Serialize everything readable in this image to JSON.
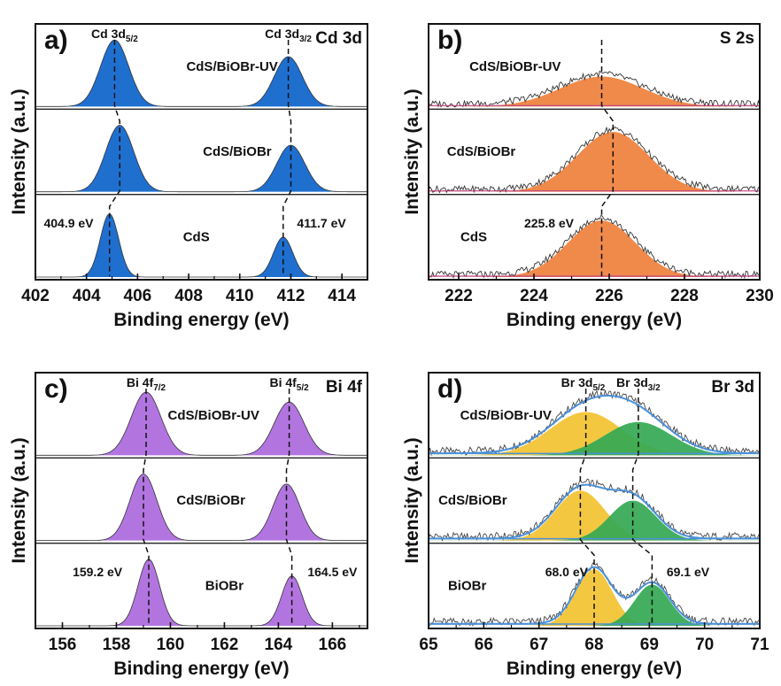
{
  "chart_data": [
    {
      "panel": "a",
      "panel_label": "a)",
      "element": "Cd 3d",
      "type": "area",
      "xlabel": "Binding energy (eV)",
      "ylabel": "Intensity (a.u.)",
      "xlim": [
        402,
        415
      ],
      "xticks": [
        402,
        404,
        406,
        408,
        410,
        412,
        414
      ],
      "fill_color": "#1f6fcf",
      "peak_labels": [
        {
          "base": "Cd 3d",
          "sub": "5/2",
          "x": 405.1
        },
        {
          "base": "Cd 3d",
          "sub": "3/2",
          "x": 411.9
        }
      ],
      "series": [
        {
          "name": "CdS/BiOBr-UV",
          "label_x": 409.7,
          "peaks": [
            {
              "center": 405.1,
              "height": 1.0,
              "width": 0.55
            },
            {
              "center": 411.9,
              "height": 0.75,
              "width": 0.55
            }
          ]
        },
        {
          "name": "CdS/BiOBr",
          "label_x": 409.9,
          "peaks": [
            {
              "center": 405.3,
              "height": 1.0,
              "width": 0.55
            },
            {
              "center": 412.0,
              "height": 0.7,
              "width": 0.55
            }
          ]
        },
        {
          "name": "CdS",
          "label_x": 408.3,
          "peaks": [
            {
              "center": 404.9,
              "height": 0.95,
              "width": 0.36
            },
            {
              "center": 411.7,
              "height": 0.6,
              "width": 0.38
            }
          ]
        }
      ],
      "annotations": [
        {
          "text": "404.9 eV",
          "x": 403.3,
          "series": 2
        },
        {
          "text": "411.7 eV",
          "x": 413.2,
          "series": 2
        }
      ],
      "dashed_guides": [
        [
          405.1,
          405.3,
          404.9
        ],
        [
          411.9,
          412.0,
          411.7
        ]
      ]
    },
    {
      "panel": "b",
      "panel_label": "b)",
      "element": "S 2s",
      "type": "area",
      "xlabel": "Binding energy (eV)",
      "ylabel": "Intensity (a.u.)",
      "xlim": [
        221.2,
        230
      ],
      "xticks": [
        222,
        224,
        226,
        228,
        230
      ],
      "fill_color": "#f08a4b",
      "series": [
        {
          "name": "CdS/BiOBr-UV",
          "label_x": 223.5,
          "peaks": [
            {
              "center": 225.8,
              "height": 0.45,
              "width": 1.1
            }
          ]
        },
        {
          "name": "CdS/BiOBr",
          "label_x": 222.6,
          "peaks": [
            {
              "center": 226.1,
              "height": 0.9,
              "width": 0.95
            }
          ]
        },
        {
          "name": "CdS",
          "label_x": 222.4,
          "peaks": [
            {
              "center": 225.8,
              "height": 0.85,
              "width": 0.9
            }
          ]
        }
      ],
      "annotations": [
        {
          "text": "225.8 eV",
          "x": 224.4,
          "series": 2
        }
      ],
      "dashed_guides": [
        [
          225.8,
          226.1,
          225.8
        ]
      ]
    },
    {
      "panel": "c",
      "panel_label": "c)",
      "element": "Bi 4f",
      "type": "area",
      "xlabel": "Binding energy (eV)",
      "ylabel": "Intensity (a.u.)",
      "xlim": [
        155,
        167.3
      ],
      "xticks": [
        156,
        158,
        160,
        162,
        164,
        166
      ],
      "fill_color": "#b275e0",
      "peak_labels": [
        {
          "base": "Bi 4f",
          "sub": "7/2",
          "x": 159.1
        },
        {
          "base": "Bi 4f",
          "sub": "5/2",
          "x": 164.4
        }
      ],
      "series": [
        {
          "name": "CdS/BiOBr-UV",
          "label_x": 161.6,
          "peaks": [
            {
              "center": 159.1,
              "height": 0.95,
              "width": 0.55
            },
            {
              "center": 164.4,
              "height": 0.8,
              "width": 0.55
            }
          ]
        },
        {
          "name": "CdS/BiOBr",
          "label_x": 161.5,
          "peaks": [
            {
              "center": 159.0,
              "height": 1.0,
              "width": 0.5
            },
            {
              "center": 164.3,
              "height": 0.85,
              "width": 0.5
            }
          ]
        },
        {
          "name": "BiOBr",
          "label_x": 162.0,
          "peaks": [
            {
              "center": 159.2,
              "height": 1.0,
              "width": 0.4
            },
            {
              "center": 164.5,
              "height": 0.75,
              "width": 0.38
            }
          ]
        }
      ],
      "annotations": [
        {
          "text": "159.2 eV",
          "x": 157.3,
          "series": 2
        },
        {
          "text": "164.5 eV",
          "x": 166.0,
          "series": 2
        }
      ],
      "dashed_guides": [
        [
          159.1,
          159.0,
          159.2
        ],
        [
          164.4,
          164.3,
          164.5
        ]
      ]
    },
    {
      "panel": "d",
      "panel_label": "d)",
      "element": "Br 3d",
      "type": "area",
      "xlabel": "Binding energy (eV)",
      "ylabel": "Intensity (a.u.)",
      "xlim": [
        65,
        71
      ],
      "xticks": [
        65,
        66,
        67,
        68,
        69,
        70,
        71
      ],
      "fill_colors": [
        "#f2c230",
        "#34a853"
      ],
      "envelope_color": "#4a90d9",
      "peak_labels": [
        {
          "base": "Br 3d",
          "sub": "5/2",
          "x": 67.8
        },
        {
          "base": "Br 3d",
          "sub": "3/2",
          "x": 68.8
        }
      ],
      "series": [
        {
          "name": "CdS/BiOBr-UV",
          "label_x": 66.4,
          "peaks": [
            {
              "center": 67.85,
              "height": 0.65,
              "width": 0.65
            },
            {
              "center": 68.8,
              "height": 0.5,
              "width": 0.6
            }
          ]
        },
        {
          "name": "CdS/BiOBr",
          "label_x": 65.8,
          "peaks": [
            {
              "center": 67.75,
              "height": 0.75,
              "width": 0.45
            },
            {
              "center": 68.7,
              "height": 0.6,
              "width": 0.42
            }
          ]
        },
        {
          "name": "BiOBr",
          "label_x": 65.7,
          "peaks": [
            {
              "center": 68.0,
              "height": 0.85,
              "width": 0.33
            },
            {
              "center": 69.05,
              "height": 0.62,
              "width": 0.32
            }
          ]
        }
      ],
      "annotations": [
        {
          "text": "68.0 eV",
          "x": 67.5,
          "series": 2
        },
        {
          "text": "69.1 eV",
          "x": 69.7,
          "series": 2
        }
      ],
      "dashed_guides": [
        [
          67.85,
          67.75,
          68.0
        ],
        [
          68.8,
          68.7,
          69.05
        ]
      ]
    }
  ]
}
